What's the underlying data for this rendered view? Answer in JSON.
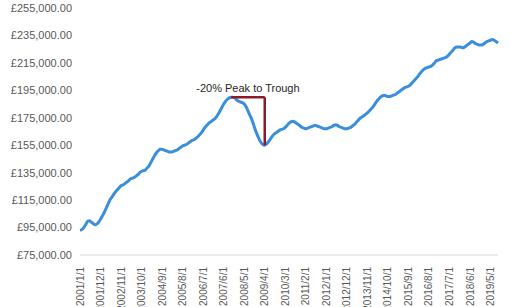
{
  "chart_data": {
    "type": "line",
    "categories": [
      "2001/1/1",
      null,
      null,
      null,
      null,
      null,
      null,
      null,
      null,
      null,
      null,
      "2001/12/1",
      null,
      null,
      null,
      null,
      null,
      null,
      null,
      null,
      null,
      null,
      "2002/11/1",
      null,
      null,
      null,
      null,
      null,
      null,
      null,
      null,
      null,
      null,
      "2003/10/1",
      null,
      null,
      null,
      null,
      null,
      null,
      null,
      null,
      null,
      null,
      "2004/9/1",
      null,
      null,
      null,
      null,
      null,
      null,
      null,
      null,
      null,
      null,
      "2005/8/1",
      null,
      null,
      null,
      null,
      null,
      null,
      null,
      null,
      null,
      null,
      "2006/7/1",
      null,
      null,
      null,
      null,
      null,
      null,
      null,
      null,
      null,
      null,
      "2007/6/1",
      null,
      null,
      null,
      null,
      null,
      null,
      null,
      null,
      null,
      null,
      "2008/5/1",
      null,
      null,
      null,
      null,
      null,
      null,
      null,
      null,
      null,
      null,
      "2009/4/1",
      null,
      null,
      null,
      null,
      null,
      null,
      null,
      null,
      null,
      null,
      "2010/3/1",
      null,
      null,
      null,
      null,
      null,
      null,
      null,
      null,
      null,
      null,
      "2011/2/1",
      null,
      null,
      null,
      null,
      null,
      null,
      null,
      null,
      null,
      null,
      "2012/1/1",
      null,
      null,
      null,
      null,
      null,
      null,
      null,
      null,
      null,
      null,
      "2012/12/1",
      null,
      null,
      null,
      null,
      null,
      null,
      null,
      null,
      null,
      null,
      "2013/11/1",
      null,
      null,
      null,
      null,
      null,
      null,
      null,
      null,
      null,
      null,
      "2014/10/1",
      null,
      null,
      null,
      null,
      null,
      null,
      null,
      null,
      null,
      null,
      "2015/9/1",
      null,
      null,
      null,
      null,
      null,
      null,
      null,
      null,
      null,
      null,
      "2016/8/1",
      null,
      null,
      null,
      null,
      null,
      null,
      null,
      null,
      null,
      null,
      "2017/7/1",
      null,
      null,
      null,
      null,
      null,
      null,
      null,
      null,
      null,
      null,
      "2018/6/1",
      null,
      null,
      null,
      null,
      null,
      null,
      null,
      null,
      null,
      null,
      "2019/5/1",
      null,
      null,
      null,
      null
    ],
    "values": [
      93000,
      93500,
      95000,
      97000,
      99500,
      100000,
      99000,
      98000,
      97000,
      97500,
      99000,
      101000,
      103500,
      106000,
      109000,
      112000,
      115000,
      117000,
      119000,
      121000,
      122500,
      124000,
      125500,
      126000,
      127000,
      128000,
      129000,
      130500,
      131000,
      131500,
      132500,
      133500,
      135000,
      136000,
      136500,
      137000,
      138500,
      140000,
      142500,
      145000,
      147500,
      149500,
      151000,
      152000,
      152000,
      151500,
      151000,
      150500,
      150000,
      150000,
      150500,
      151000,
      151500,
      152500,
      153500,
      154500,
      155000,
      155500,
      156500,
      157500,
      158500,
      159000,
      160000,
      161000,
      162500,
      164000,
      166000,
      168000,
      169500,
      171000,
      172000,
      173000,
      174000,
      175500,
      177500,
      180000,
      182500,
      185000,
      187000,
      188500,
      189500,
      190000,
      190000,
      189500,
      188000,
      187000,
      186500,
      186000,
      185000,
      183000,
      180000,
      177000,
      174000,
      170000,
      166000,
      162500,
      159500,
      157000,
      155500,
      155000,
      156000,
      157500,
      159500,
      161500,
      163000,
      164000,
      165000,
      166000,
      166500,
      167000,
      168000,
      169500,
      171000,
      172000,
      172500,
      172000,
      171000,
      170000,
      169000,
      168000,
      167500,
      167000,
      167500,
      168000,
      168500,
      169000,
      169500,
      169000,
      168500,
      168000,
      167500,
      167000,
      167000,
      167500,
      168000,
      168500,
      169500,
      170000,
      169500,
      168500,
      168000,
      167500,
      167000,
      167000,
      167500,
      168000,
      169000,
      170000,
      171500,
      173000,
      174500,
      175500,
      176500,
      177500,
      178500,
      180000,
      181500,
      183000,
      185000,
      187000,
      188500,
      190000,
      191000,
      191500,
      191000,
      190500,
      190500,
      191000,
      191500,
      192000,
      193000,
      194000,
      195000,
      196000,
      197000,
      197500,
      198000,
      199000,
      200500,
      202000,
      203500,
      205000,
      207000,
      208500,
      210000,
      211000,
      211500,
      212000,
      212500,
      213500,
      215000,
      216500,
      217000,
      217500,
      218000,
      218500,
      219000,
      220000,
      221500,
      223000,
      224500,
      226000,
      226500,
      226500,
      226500,
      226000,
      226500,
      227500,
      228500,
      229500,
      230500,
      230000,
      229000,
      228500,
      228000,
      228000,
      228500,
      229500,
      230500,
      231000,
      231500,
      232000,
      231500,
      230500,
      229500
    ],
    "color": "#3a8edc",
    "ylim": [
      75000,
      255000
    ],
    "yticks": [
      {
        "value": 75000,
        "label": "£75,000.00"
      },
      {
        "value": 95000,
        "label": "£95,000.00"
      },
      {
        "value": 115000,
        "label": "£115,000.00"
      },
      {
        "value": 135000,
        "label": "£135,000.00"
      },
      {
        "value": 155000,
        "label": "£155,000.00"
      },
      {
        "value": 175000,
        "label": "£175,000.00"
      },
      {
        "value": 195000,
        "label": "£195,000.00"
      },
      {
        "value": 215000,
        "label": "£215,000.00"
      },
      {
        "value": 235000,
        "label": "£235,000.00"
      },
      {
        "value": 255000,
        "label": "£255,000.00"
      }
    ],
    "grid": false,
    "annotation": {
      "text": "-20% Peak to Trough",
      "color": "#8b1a2b"
    }
  }
}
